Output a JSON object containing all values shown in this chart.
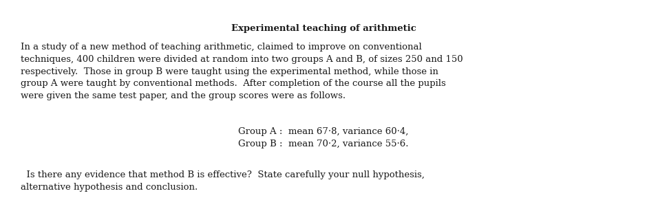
{
  "title": "Experimental teaching of arithmetic",
  "p1_lines": [
    "In a study of a new method of teaching arithmetic, claimed to improve on conventional",
    "techniques, 400 children were divided at random into two groups A and B, of sizes 250 and 150",
    "respectively.  Those in group B were taught using the experimental method, while those in",
    "group A were taught by conventional methods.  After completion of the course all the pupils",
    "were given the same test paper, and the group scores were as follows."
  ],
  "group_line1": "Group A :  mean 67·8, variance 60·4,",
  "group_line2": "Group B :  mean 70·2, variance 55·6.",
  "p2_lines": [
    "  Is there any evidence that method B is effective?  State carefully your null hypothesis,",
    "alternative hypothesis and conclusion."
  ],
  "bg_color": "#ffffff",
  "text_color": "#1a1a1a",
  "title_fontsize": 9.5,
  "body_fontsize": 9.5
}
